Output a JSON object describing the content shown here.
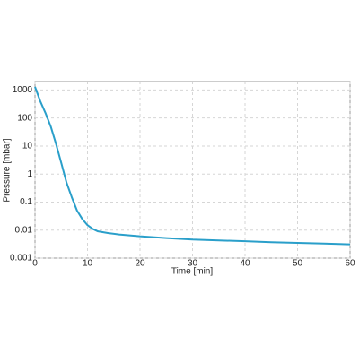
{
  "chart_data": {
    "type": "line",
    "x_label": "Time [min]",
    "y_label": "Pressure [mbar]",
    "y_scale": "log",
    "grid": true,
    "xlim": [
      0,
      60
    ],
    "xticks": [
      0,
      10,
      20,
      30,
      40,
      50,
      60
    ],
    "ylim": [
      0.001,
      2000
    ],
    "yticks": [
      1000,
      100,
      10,
      1,
      0.1,
      0.01,
      0.001
    ],
    "series": [
      {
        "color": "#2a9fca",
        "x": [
          0,
          1,
          2,
          3,
          4,
          5,
          6,
          7,
          8,
          9,
          10,
          11,
          12,
          14,
          16,
          20,
          25,
          30,
          35,
          40,
          45,
          50,
          55,
          60
        ],
        "values": [
          1300,
          400,
          150,
          50,
          12,
          2.5,
          0.5,
          0.15,
          0.05,
          0.025,
          0.015,
          0.011,
          0.009,
          0.0078,
          0.007,
          0.006,
          0.0052,
          0.0046,
          0.0043,
          0.004,
          0.0037,
          0.0035,
          0.0033,
          0.0031
        ]
      }
    ]
  }
}
